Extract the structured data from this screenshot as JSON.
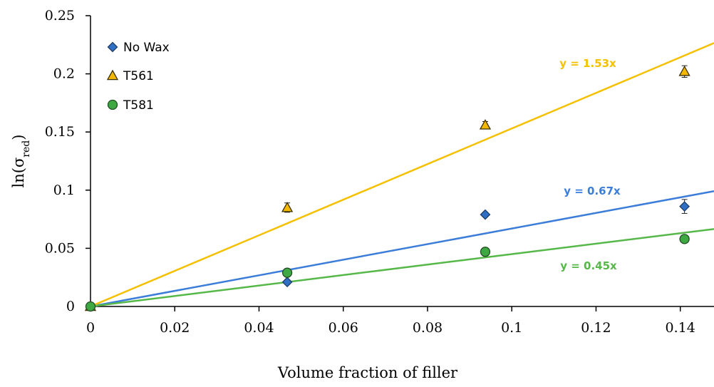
{
  "chart_data": {
    "type": "scatter",
    "xlabel": "Volume fraction of filler",
    "ylabel": {
      "main": "ln(σ",
      "sub": "red",
      "close": ")"
    },
    "xlim": [
      0,
      0.148
    ],
    "ylim": [
      0,
      0.25
    ],
    "x_ticks": [
      0,
      0.02,
      0.04,
      0.06,
      0.08,
      0.1,
      0.12,
      0.14
    ],
    "x_tick_labels": [
      "0",
      "0.02",
      "0.04",
      "0.06",
      "0.08",
      "0.1",
      "0.12",
      "0.14"
    ],
    "y_ticks": [
      0,
      0.05,
      0.1,
      0.15,
      0.2,
      0.25
    ],
    "y_tick_labels": [
      "0",
      "0.05",
      "0.1",
      "0.15",
      "0.2",
      "0.25"
    ],
    "grid": false,
    "legend_position": "top-left",
    "series": [
      {
        "name": "No Wax",
        "marker": "diamond",
        "color": "#2f6fc4",
        "x": [
          0,
          0.0467,
          0.0937,
          0.141
        ],
        "y": [
          0,
          0.021,
          0.079,
          0.086
        ],
        "error": [
          0,
          0.002,
          0.002,
          0.006
        ],
        "trend": {
          "label": "y = 0.67x",
          "slope": 0.67,
          "color": "#3b7dd8"
        }
      },
      {
        "name": "T561",
        "marker": "triangle",
        "color": "#f5b800",
        "x": [
          0,
          0.0467,
          0.0937,
          0.141
        ],
        "y": [
          0,
          0.085,
          0.156,
          0.202
        ],
        "error": [
          0,
          0.004,
          0.003,
          0.005
        ],
        "trend": {
          "label": "y = 1.53x",
          "slope": 1.53,
          "color": "#f5c000"
        }
      },
      {
        "name": "T581",
        "marker": "circle",
        "color": "#3ea843",
        "x": [
          0,
          0.0467,
          0.0937,
          0.141
        ],
        "y": [
          0,
          0.029,
          0.047,
          0.058
        ],
        "error": [
          0,
          0.001,
          0.001,
          0.002
        ],
        "trend": {
          "label": "y = 0.45x",
          "slope": 0.45,
          "color": "#56b848"
        }
      }
    ]
  }
}
